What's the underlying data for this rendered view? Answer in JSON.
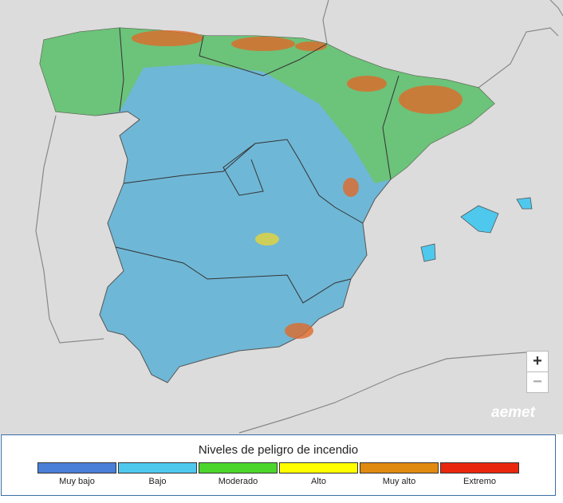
{
  "map": {
    "legend": {
      "title": "Niveles de peligro de incendio",
      "levels": [
        {
          "label": "Muy bajo",
          "color": "#4a7fd8"
        },
        {
          "label": "Bajo",
          "color": "#4fc8ee"
        },
        {
          "label": "Moderado",
          "color": "#4cd62c"
        },
        {
          "label": "Alto",
          "color": "#ffff00"
        },
        {
          "label": "Muy alto",
          "color": "#e08a10"
        },
        {
          "label": "Extremo",
          "color": "#e8270e"
        }
      ]
    },
    "zoom": {
      "in": "+",
      "out": "−"
    },
    "logo": "aemet"
  }
}
